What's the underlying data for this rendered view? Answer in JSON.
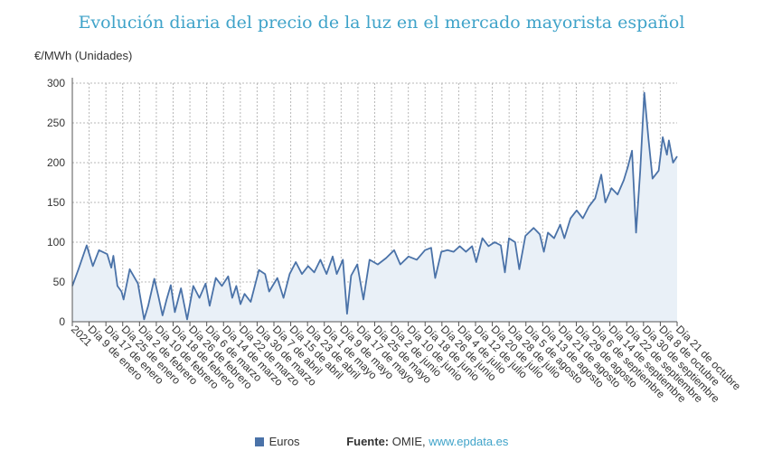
{
  "title": "Evolución diaria del precio de la luz en el mercado mayorista español",
  "unit_label": "€/MWh (Unidades)",
  "legend_label": "Euros",
  "source_label": "Fuente:",
  "source_text": "OMIE,",
  "source_link": "www.epdata.es",
  "colors": {
    "line": "#4a72a8",
    "fill": "#e9f0f7",
    "grid": "#b8b8b8",
    "title": "#3fa3c9"
  },
  "chart_data": {
    "type": "area",
    "ylabel": "€/MWh (Unidades)",
    "ylim": [
      0,
      300
    ],
    "yticks": [
      0,
      50,
      100,
      150,
      200,
      250,
      300
    ],
    "grid": true,
    "legend_position": "bottom",
    "xlim": [
      "2021-01-01",
      "2021-10-23"
    ],
    "x_labels": [
      "2021",
      "Día 9 de enero",
      "Día 17 de enero",
      "Día 25 de enero",
      "Día 2 de febrero",
      "Día 10 de febrero",
      "Día 18 de febrero",
      "Día 26 de febrero",
      "Día 6 de marzo",
      "Día 14 de marzo",
      "Día 22 de marzo",
      "Día 30 de marzo",
      "Día 7 de abril",
      "Día 15 de abril",
      "Día 23 de abril",
      "Día 1 de mayo",
      "Día 9 de mayo",
      "Día 17 de mayo",
      "Día 25 de mayo",
      "Día 2 de junio",
      "Día 10 de junio",
      "Día 18 de junio",
      "Día 26 de junio",
      "Día 4 de julio",
      "Día 12 de julio",
      "Día 20 de julio",
      "Día 28 de julio",
      "Día 5 de agosto",
      "Día 13 de agosto",
      "Día 21 de agosto",
      "Día 29 de agosto",
      "Día 6 de septiembre",
      "Día 14 de septiembre",
      "Día 22 de septiembre",
      "Día 30 de septiembre",
      "Día 8 de octubre",
      "Día 21 de octubre"
    ],
    "series": [
      {
        "name": "Euros",
        "points": [
          [
            "2021-01-01",
            45
          ],
          [
            "2021-01-04",
            66
          ],
          [
            "2021-01-08",
            96
          ],
          [
            "2021-01-11",
            70
          ],
          [
            "2021-01-14",
            90
          ],
          [
            "2021-01-18",
            85
          ],
          [
            "2021-01-20",
            68
          ],
          [
            "2021-01-21",
            83
          ],
          [
            "2021-01-23",
            45
          ],
          [
            "2021-01-25",
            38
          ],
          [
            "2021-01-26",
            28
          ],
          [
            "2021-01-29",
            66
          ],
          [
            "2021-02-02",
            48
          ],
          [
            "2021-02-05",
            3
          ],
          [
            "2021-02-07",
            20
          ],
          [
            "2021-02-10",
            54
          ],
          [
            "2021-02-12",
            32
          ],
          [
            "2021-02-14",
            8
          ],
          [
            "2021-02-16",
            28
          ],
          [
            "2021-02-18",
            46
          ],
          [
            "2021-02-20",
            12
          ],
          [
            "2021-02-23",
            42
          ],
          [
            "2021-02-26",
            3
          ],
          [
            "2021-03-01",
            45
          ],
          [
            "2021-03-04",
            30
          ],
          [
            "2021-03-07",
            48
          ],
          [
            "2021-03-09",
            20
          ],
          [
            "2021-03-12",
            55
          ],
          [
            "2021-03-15",
            45
          ],
          [
            "2021-03-18",
            57
          ],
          [
            "2021-03-20",
            30
          ],
          [
            "2021-03-22",
            45
          ],
          [
            "2021-03-24",
            22
          ],
          [
            "2021-03-26",
            35
          ],
          [
            "2021-03-29",
            25
          ],
          [
            "2021-04-02",
            65
          ],
          [
            "2021-04-05",
            60
          ],
          [
            "2021-04-07",
            38
          ],
          [
            "2021-04-11",
            55
          ],
          [
            "2021-04-14",
            30
          ],
          [
            "2021-04-17",
            60
          ],
          [
            "2021-04-20",
            75
          ],
          [
            "2021-04-23",
            60
          ],
          [
            "2021-04-26",
            70
          ],
          [
            "2021-04-29",
            62
          ],
          [
            "2021-05-02",
            78
          ],
          [
            "2021-05-05",
            60
          ],
          [
            "2021-05-08",
            82
          ],
          [
            "2021-05-10",
            60
          ],
          [
            "2021-05-13",
            78
          ],
          [
            "2021-05-15",
            10
          ],
          [
            "2021-05-17",
            58
          ],
          [
            "2021-05-20",
            72
          ],
          [
            "2021-05-23",
            28
          ],
          [
            "2021-05-26",
            78
          ],
          [
            "2021-05-30",
            72
          ],
          [
            "2021-06-03",
            80
          ],
          [
            "2021-06-07",
            90
          ],
          [
            "2021-06-10",
            72
          ],
          [
            "2021-06-14",
            82
          ],
          [
            "2021-06-18",
            78
          ],
          [
            "2021-06-22",
            90
          ],
          [
            "2021-06-25",
            93
          ],
          [
            "2021-06-27",
            55
          ],
          [
            "2021-06-30",
            88
          ],
          [
            "2021-07-03",
            90
          ],
          [
            "2021-07-06",
            88
          ],
          [
            "2021-07-09",
            95
          ],
          [
            "2021-07-12",
            88
          ],
          [
            "2021-07-15",
            95
          ],
          [
            "2021-07-17",
            75
          ],
          [
            "2021-07-20",
            105
          ],
          [
            "2021-07-23",
            95
          ],
          [
            "2021-07-26",
            100
          ],
          [
            "2021-07-29",
            96
          ],
          [
            "2021-07-31",
            62
          ],
          [
            "2021-08-02",
            105
          ],
          [
            "2021-08-05",
            100
          ],
          [
            "2021-08-07",
            66
          ],
          [
            "2021-08-10",
            108
          ],
          [
            "2021-08-14",
            118
          ],
          [
            "2021-08-17",
            110
          ],
          [
            "2021-08-19",
            88
          ],
          [
            "2021-08-21",
            112
          ],
          [
            "2021-08-24",
            105
          ],
          [
            "2021-08-27",
            122
          ],
          [
            "2021-08-29",
            105
          ],
          [
            "2021-09-01",
            130
          ],
          [
            "2021-09-04",
            140
          ],
          [
            "2021-09-07",
            130
          ],
          [
            "2021-09-10",
            145
          ],
          [
            "2021-09-13",
            155
          ],
          [
            "2021-09-16",
            185
          ],
          [
            "2021-09-18",
            150
          ],
          [
            "2021-09-21",
            168
          ],
          [
            "2021-09-24",
            160
          ],
          [
            "2021-09-27",
            178
          ],
          [
            "2021-09-29",
            195
          ],
          [
            "2021-10-01",
            215
          ],
          [
            "2021-10-03",
            112
          ],
          [
            "2021-10-05",
            190
          ],
          [
            "2021-10-07",
            288
          ],
          [
            "2021-10-09",
            230
          ],
          [
            "2021-10-11",
            180
          ],
          [
            "2021-10-14",
            190
          ],
          [
            "2021-10-16",
            232
          ],
          [
            "2021-10-18",
            210
          ],
          [
            "2021-10-19",
            228
          ],
          [
            "2021-10-21",
            200
          ],
          [
            "2021-10-23",
            208
          ]
        ]
      }
    ]
  }
}
